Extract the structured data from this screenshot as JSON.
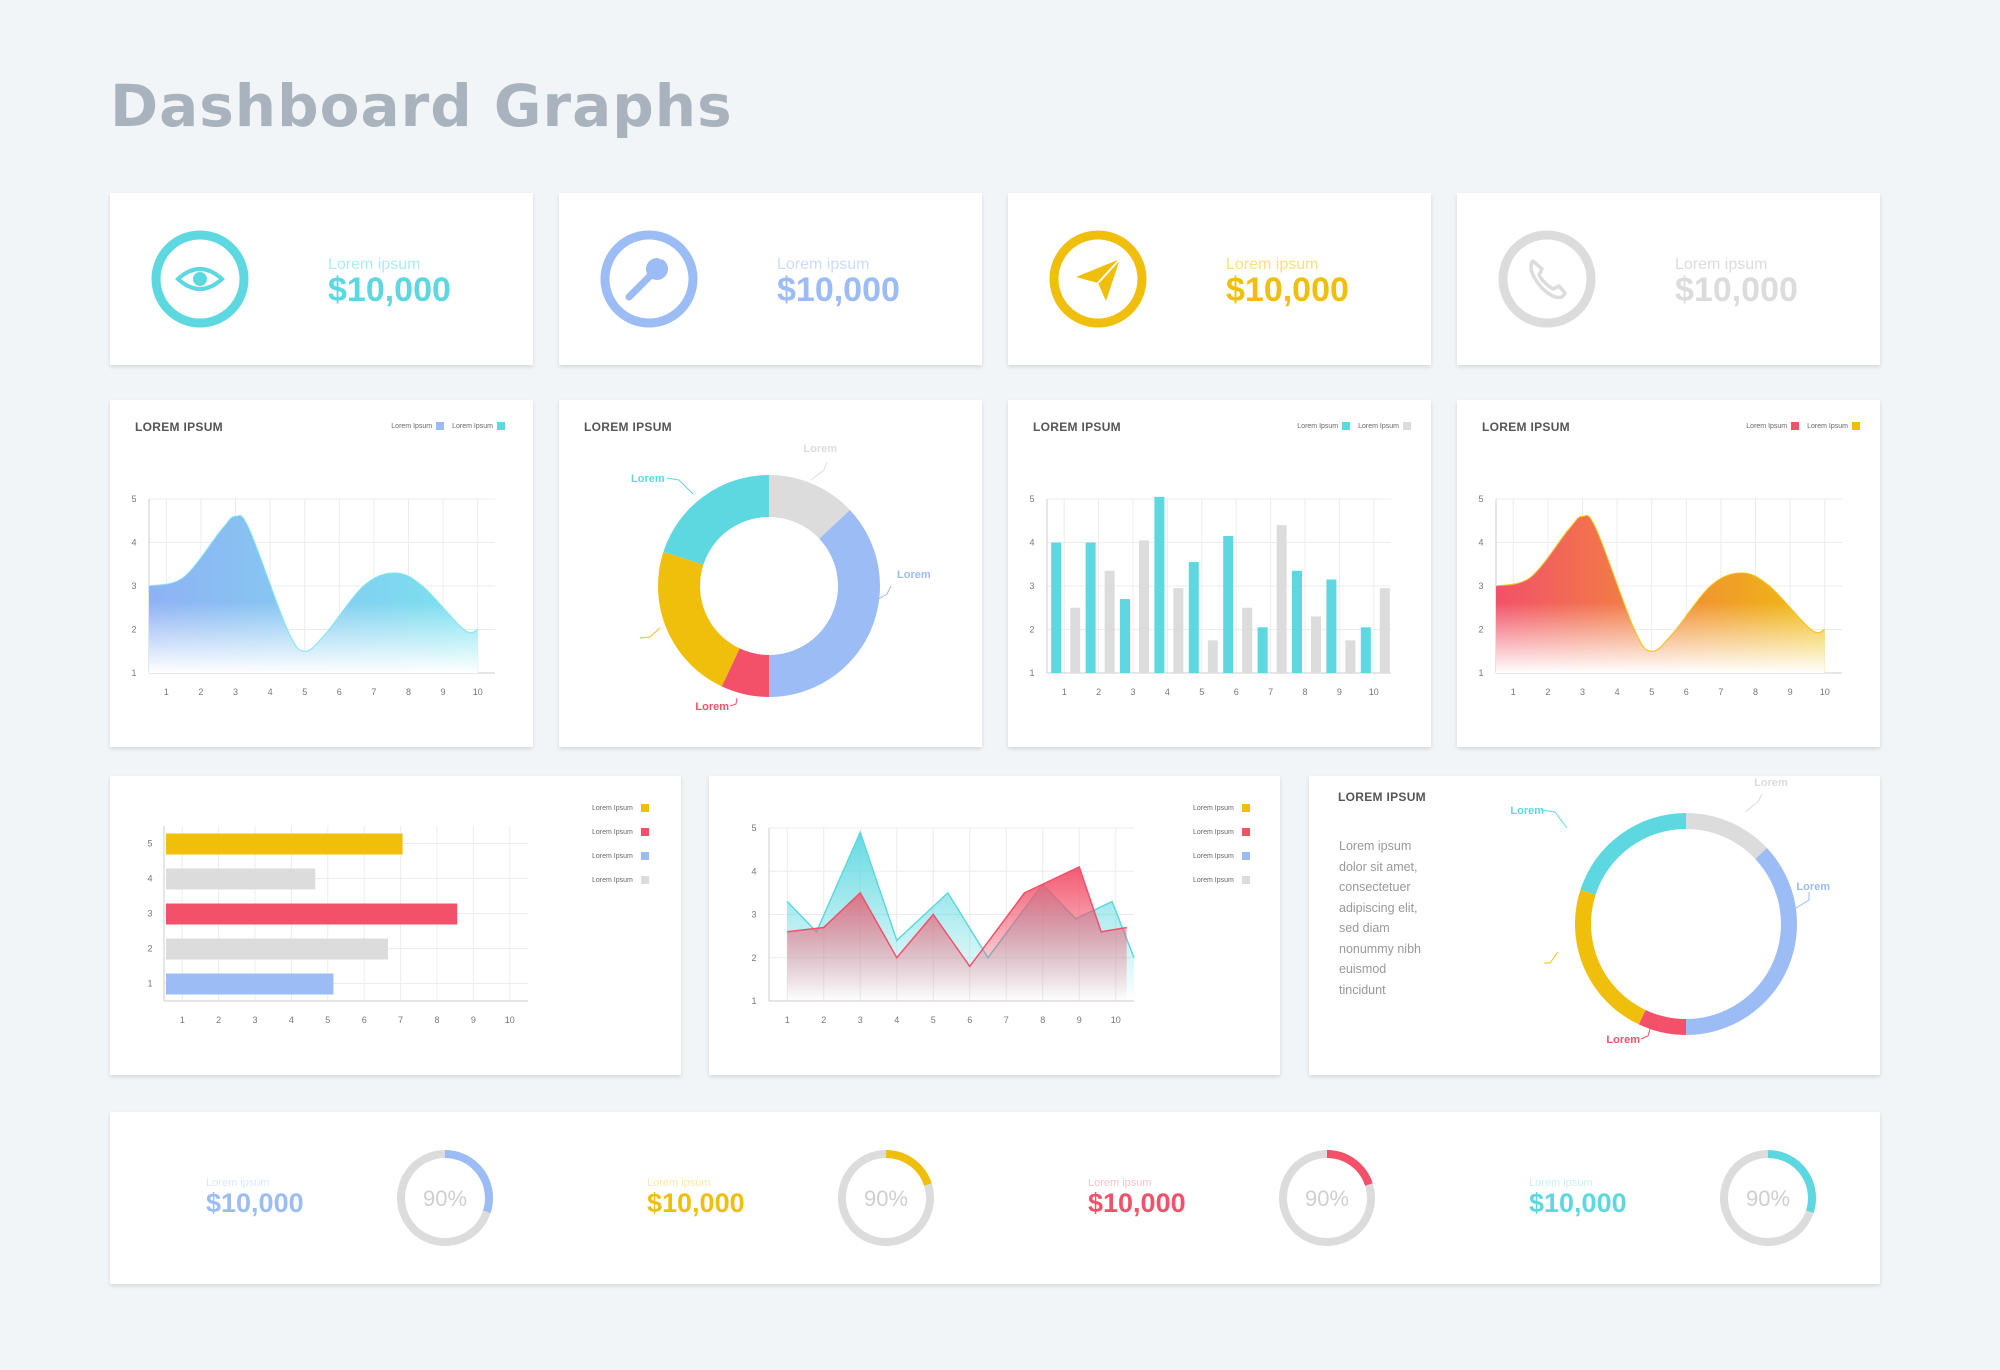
{
  "title": "Dashboard Graphs",
  "colors": {
    "teal": "#5dd8e0",
    "blue": "#9bbcf5",
    "yellow": "#f0bf0c",
    "red": "#f25169",
    "gray": "#dcdcdc"
  },
  "stats": [
    {
      "icon": "eye-icon",
      "label": "Lorem ipsum",
      "value": "$10,000",
      "color": "#5dd8e0"
    },
    {
      "icon": "wrench-icon",
      "label": "Lorem ipsum",
      "value": "$10,000",
      "color": "#9bbcf5"
    },
    {
      "icon": "paper-plane-icon",
      "label": "Lorem ipsum",
      "value": "$10,000",
      "color": "#f0bf0c"
    },
    {
      "icon": "phone-icon",
      "label": "Lorem ipsum",
      "value": "$10,000",
      "color": "#dcdcdc"
    }
  ],
  "card_titles": {
    "area1": "LOREM IPSUM",
    "donut1": "LOREM IPSUM",
    "bars": "LOREM IPSUM",
    "area2": "LOREM IPSUM",
    "donut2": "LOREM IPSUM"
  },
  "legends": {
    "area1": [
      "Lorem Ipsum",
      "Lorem Ipsum"
    ],
    "bars": [
      "Lorem Ipsum",
      "Lorem Ipsum"
    ],
    "area2": [
      "Lorem Ipsum",
      "Lorem Ipsum"
    ],
    "hbar": [
      "Lorem Ipsum",
      "Lorem Ipsum",
      "Lorem Ipsum",
      "Lorem Ipsum"
    ],
    "mountain": [
      "Lorem Ipsum",
      "Lorem Ipsum",
      "Lorem Ipsum",
      "Lorem Ipsum"
    ]
  },
  "description": "Lorem ipsum\ndolor sit amet,\nconsectetuer\nadipiscing elit,\nsed diam\nnonummy nibh\neuismod\ntincidunt",
  "kpis": [
    {
      "label": "Lorem ipsum",
      "value": "$10,000",
      "percent": "90%",
      "fraction": 0.3,
      "color": "#9bbcf5"
    },
    {
      "label": "Lorem ipsum",
      "value": "$10,000",
      "percent": "90%",
      "fraction": 0.2,
      "color": "#f0bf0c"
    },
    {
      "label": "Lorem ipsum",
      "value": "$10,000",
      "percent": "90%",
      "fraction": 0.2,
      "color": "#f25169"
    },
    {
      "label": "Lorem ipsum",
      "value": "$10,000",
      "percent": "90%",
      "fraction": 0.3,
      "color": "#5dd8e0"
    }
  ],
  "chart_data": [
    {
      "type": "area",
      "title": "LOREM IPSUM",
      "x": [
        1,
        2,
        3,
        4,
        5,
        6,
        7,
        8,
        9,
        10
      ],
      "xlim": [
        0.5,
        10.5
      ],
      "ylim": [
        1,
        5
      ],
      "curve": [
        [
          0.5,
          3.0
        ],
        [
          1.5,
          3.2
        ],
        [
          2.6,
          4.3
        ],
        [
          3.0,
          4.6
        ],
        [
          3.4,
          4.3
        ],
        [
          4.5,
          2.0
        ],
        [
          5.0,
          1.5
        ],
        [
          5.6,
          1.9
        ],
        [
          6.7,
          3.0
        ],
        [
          7.6,
          3.3
        ],
        [
          8.4,
          3.0
        ],
        [
          9.6,
          2.0
        ],
        [
          10.0,
          2.0
        ]
      ],
      "legend": [
        "Lorem Ipsum",
        "Lorem Ipsum"
      ],
      "series_colors": [
        "#9bbcf5",
        "#5dd8e0"
      ]
    },
    {
      "type": "pie",
      "title": "LOREM IPSUM",
      "slices": [
        {
          "label": "Lorem",
          "value": 13,
          "color": "#dcdcdc"
        },
        {
          "label": "Lorem",
          "value": 37,
          "color": "#9bbcf5"
        },
        {
          "label": "Lorem",
          "value": 7,
          "color": "#f25169"
        },
        {
          "label": "",
          "value": 23,
          "color": "#f0bf0c"
        },
        {
          "label": "Lorem",
          "value": 20,
          "color": "#5dd8e0"
        }
      ]
    },
    {
      "type": "bar",
      "title": "LOREM IPSUM",
      "categories": [
        1,
        2,
        3,
        4,
        5,
        6,
        7,
        8,
        9,
        10
      ],
      "ylim": [
        1,
        5
      ],
      "series": [
        {
          "values": [
            4.0,
            4.0,
            2.7,
            5.05,
            3.55,
            4.15,
            2.05,
            3.35,
            3.15,
            2.05
          ],
          "color": "#5dd8e0",
          "name": "Lorem Ipsum"
        },
        {
          "values": [
            2.5,
            3.35,
            4.05,
            2.95,
            1.75,
            2.5,
            4.4,
            2.3,
            1.75,
            2.95
          ],
          "color": "#dcdcdc",
          "name": "Lorem Ipsum"
        }
      ]
    },
    {
      "type": "area",
      "title": "LOREM IPSUM",
      "x": [
        1,
        2,
        3,
        4,
        5,
        6,
        7,
        8,
        9,
        10
      ],
      "xlim": [
        0.5,
        10.5
      ],
      "ylim": [
        1,
        5
      ],
      "curve": [
        [
          0.5,
          3.0
        ],
        [
          1.5,
          3.2
        ],
        [
          2.6,
          4.3
        ],
        [
          3.0,
          4.6
        ],
        [
          3.4,
          4.3
        ],
        [
          4.5,
          2.0
        ],
        [
          5.0,
          1.5
        ],
        [
          5.6,
          1.9
        ],
        [
          6.7,
          3.0
        ],
        [
          7.6,
          3.3
        ],
        [
          8.4,
          3.0
        ],
        [
          9.6,
          2.0
        ],
        [
          10.0,
          2.0
        ]
      ],
      "legend": [
        "Lorem Ipsum",
        "Lorem Ipsum"
      ],
      "series_colors": [
        "#f25169",
        "#f0bf0c"
      ]
    },
    {
      "type": "bar",
      "orientation": "horizontal",
      "categories": [
        5,
        4,
        3,
        2,
        1
      ],
      "xlim": [
        1,
        10
      ],
      "values": [
        7.0,
        4.6,
        8.5,
        6.6,
        5.1
      ],
      "colors": [
        "#f0bf0c",
        "#dcdcdc",
        "#f25169",
        "#dcdcdc",
        "#9bbcf5"
      ],
      "legend": [
        "Lorem Ipsum",
        "Lorem Ipsum",
        "Lorem Ipsum",
        "Lorem Ipsum"
      ]
    },
    {
      "type": "area",
      "x": [
        1,
        2,
        3,
        4,
        5,
        6,
        7,
        8,
        9,
        10
      ],
      "xlim": [
        1,
        10
      ],
      "ylim": [
        1,
        5
      ],
      "series": [
        {
          "color": "#5dd8e0",
          "points": [
            [
              1,
              3.3
            ],
            [
              1.8,
              2.6
            ],
            [
              3,
              4.9
            ],
            [
              4,
              2.4
            ],
            [
              5.4,
              3.5
            ],
            [
              6.5,
              2.0
            ],
            [
              8,
              3.7
            ],
            [
              8.9,
              2.9
            ],
            [
              9.9,
              3.3
            ],
            [
              10.5,
              2.0
            ]
          ]
        },
        {
          "color": "#f25169",
          "points": [
            [
              1,
              2.6
            ],
            [
              2,
              2.7
            ],
            [
              3,
              3.5
            ],
            [
              4,
              2.0
            ],
            [
              5,
              3.0
            ],
            [
              6,
              1.8
            ],
            [
              7.5,
              3.5
            ],
            [
              9,
              4.1
            ],
            [
              9.6,
              2.6
            ],
            [
              10.3,
              2.7
            ]
          ]
        }
      ],
      "legend": [
        "Lorem Ipsum",
        "Lorem Ipsum",
        "Lorem Ipsum",
        "Lorem Ipsum"
      ]
    },
    {
      "type": "pie",
      "title": "LOREM IPSUM",
      "slices": [
        {
          "label": "Lorem",
          "value": 13,
          "color": "#dcdcdc"
        },
        {
          "label": "Lorem",
          "value": 37,
          "color": "#9bbcf5"
        },
        {
          "label": "Lorem",
          "value": 7,
          "color": "#f25169"
        },
        {
          "label": "",
          "value": 23,
          "color": "#f0bf0c"
        },
        {
          "label": "Lorem",
          "value": 20,
          "color": "#5dd8e0"
        }
      ]
    }
  ]
}
